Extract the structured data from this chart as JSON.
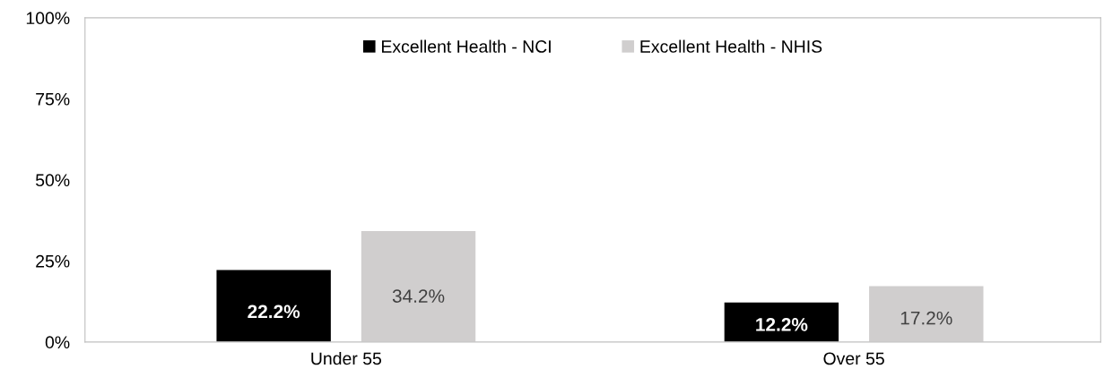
{
  "chart_data": {
    "type": "bar",
    "categories": [
      "Under 55",
      "Over 55"
    ],
    "series": [
      {
        "name": "Excellent Health - NCI",
        "color": "#000000",
        "values": [
          22.2,
          12.2
        ],
        "value_labels": [
          "22.2%",
          "12.2%"
        ]
      },
      {
        "name": "Excellent Health - NHIS",
        "color": "#d0cece",
        "values": [
          34.2,
          17.2
        ],
        "value_labels": [
          "34.2%",
          "17.2%"
        ]
      }
    ],
    "ylim": [
      0,
      100
    ],
    "yticks": [
      {
        "value": 0,
        "label": "0%"
      },
      {
        "value": 25,
        "label": "25%"
      },
      {
        "value": 50,
        "label": "50%"
      },
      {
        "value": 75,
        "label": "75%"
      },
      {
        "value": 100,
        "label": "100%"
      }
    ],
    "grid": false,
    "legend": "top"
  }
}
